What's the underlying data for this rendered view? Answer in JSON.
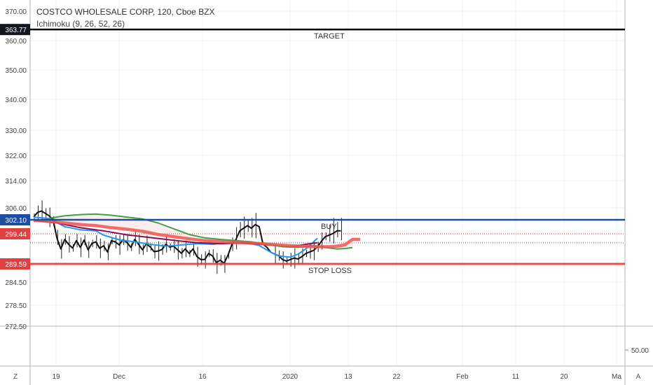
{
  "header": {
    "symbol_line": "COSTCO WHOLESALE CORP, 120, Cboe BZX",
    "indicator_line": "Ichimoku (9, 26, 52, 26)"
  },
  "footer": {
    "left_btn": "Z",
    "right_btn": "A"
  },
  "chart_data": {
    "type": "line",
    "price_axis": {
      "ticks": [
        {
          "label": "370.00",
          "v": 370
        },
        {
          "label": "360.00",
          "v": 360
        },
        {
          "label": "350.00",
          "v": 350
        },
        {
          "label": "340.00",
          "v": 340
        },
        {
          "label": "330.00",
          "v": 330
        },
        {
          "label": "322.00",
          "v": 322
        },
        {
          "label": "314.00",
          "v": 314
        },
        {
          "label": "306.00",
          "v": 306
        },
        {
          "label": "284.50",
          "v": 284.5
        },
        {
          "label": "278.50",
          "v": 278.5
        },
        {
          "label": "272.50",
          "v": 272.5
        }
      ],
      "price_tags": [
        {
          "label": "363.77",
          "v": 363.77,
          "bg": "#131722",
          "fg": "#ffffff"
        },
        {
          "label": "302.10",
          "v": 302.1,
          "bg": "#1e4da1",
          "fg": "#ffffff"
        },
        {
          "label": "299.44",
          "v": 299.44,
          "bg": "#e04040",
          "fg": "#ffffff"
        },
        {
          "label": "289.59",
          "v": 289.59,
          "bg": "#e04040",
          "fg": "#ffffff"
        }
      ]
    },
    "time_axis": [
      "19",
      "Dec",
      "16",
      "2020",
      "13",
      "22",
      "Feb",
      "11",
      "20",
      "Ma"
    ],
    "levels": [
      {
        "name": "TARGET",
        "v": 363.77,
        "color": "#000000",
        "label": "TARGET"
      },
      {
        "name": "BUY",
        "v": 302.1,
        "color": "#1e4da1",
        "label": "BUY"
      },
      {
        "name": "STOP LOSS",
        "v": 289.59,
        "color": "#e53935",
        "label": "STOP LOSS"
      }
    ],
    "dotted_levels": [
      {
        "v": 299.44,
        "color": "#c0392b"
      },
      {
        "v": 296.5,
        "color": "#555555"
      }
    ],
    "indicator_pane": {
      "tick": "50.00"
    },
    "series": [
      {
        "key": "price",
        "color": "#111111",
        "x": [
          0,
          1,
          2,
          3,
          4,
          5,
          6,
          7,
          8,
          9,
          10,
          11,
          12,
          13,
          14,
          15,
          16,
          17,
          18,
          19,
          20,
          21,
          22,
          23,
          24,
          25,
          26,
          27,
          28,
          29,
          30,
          31,
          32,
          33,
          34,
          35,
          36,
          37,
          38,
          39,
          40,
          41,
          42,
          43,
          44,
          45,
          46,
          47,
          48,
          49,
          50,
          51,
          52,
          53,
          54,
          55,
          56,
          57,
          58,
          59,
          60,
          61,
          62,
          63,
          64,
          65,
          66,
          67,
          68,
          69,
          70,
          71,
          72,
          73,
          74,
          75,
          76,
          77,
          78,
          79
        ],
        "y": [
          303,
          304.5,
          305,
          304.2,
          303.4,
          302.1,
          298,
          294.5,
          297.6,
          296,
          294.8,
          297.2,
          295,
          297.4,
          294.2,
          296.3,
          296.8,
          294.7,
          295.5,
          293.5,
          297.2,
          296.8,
          295.8,
          297.5,
          296.6,
          295,
          297.6,
          296,
          294.2,
          296.2,
          295.1,
          293.6,
          293.8,
          294.3,
          296,
          295.1,
          295.4,
          294.2,
          293.1,
          294.5,
          293,
          294.5,
          292,
          291,
          291,
          293,
          292.2,
          290,
          290.8,
          289.8,
          292.5,
          296,
          297.5,
          300,
          300.5,
          301,
          300.5,
          301.2,
          300.8,
          296,
          295,
          293.4,
          292.8,
          292.3,
          291,
          290.5,
          291,
          291.5,
          291.2,
          292,
          293,
          293.5,
          294,
          295.2,
          297,
          298.5,
          299,
          299.5,
          300,
          300
        ]
      },
      {
        "key": "tenkan",
        "color": "#2196f3",
        "x": [
          0,
          4,
          8,
          12,
          16,
          18,
          22,
          26,
          30,
          34,
          38,
          42,
          46,
          50,
          54,
          58,
          61,
          63,
          66,
          68,
          70,
          73
        ],
        "y": [
          303,
          302.5,
          300.8,
          300.2,
          300,
          299,
          297.5,
          296.8,
          296,
          295.4,
          295.8,
          296.2,
          296,
          296.5,
          296.8,
          295.6,
          293.4,
          292.2,
          291.8,
          292.8,
          294.5,
          298
        ]
      },
      {
        "key": "kijun",
        "color": "#880e4f",
        "x": [
          0,
          6,
          12,
          18,
          24,
          30,
          36,
          42,
          48,
          54,
          60,
          66,
          70,
          73
        ],
        "y": [
          302,
          301.5,
          300.6,
          300,
          299.1,
          298.2,
          297.3,
          296.5,
          296.2,
          296.4,
          295.8,
          295.2,
          296,
          296.5
        ]
      },
      {
        "key": "senkou_a",
        "color": "#43a047",
        "x": [
          4,
          8,
          12,
          16,
          20,
          24,
          28,
          32,
          36,
          40,
          44,
          48,
          52,
          56,
          60,
          64,
          68,
          72,
          76,
          78,
          80,
          82
        ],
        "y": [
          302.6,
          303.4,
          303.8,
          304,
          303.6,
          303,
          302.4,
          301.5,
          300.4,
          299.2,
          298.1,
          297.6,
          297.2,
          296.8,
          296,
          295.2,
          295,
          295.6,
          294.8,
          294.5,
          294.6,
          294.9
        ]
      },
      {
        "key": "senkou_b",
        "color": "#ef5350",
        "x": [
          0,
          4,
          8,
          12,
          16,
          20,
          24,
          28,
          32,
          36,
          40,
          44,
          48,
          52,
          56,
          60,
          64,
          68,
          72,
          76,
          78,
          80,
          82,
          84
        ],
        "y": [
          302,
          301.8,
          301.5,
          301.2,
          301,
          300.6,
          300.3,
          299.9,
          299.2,
          298.5,
          297.8,
          297.2,
          296.9,
          296.6,
          296.4,
          296.1,
          295.7,
          295.4,
          295.2,
          295.2,
          295.4,
          295.8,
          297.6,
          297.6
        ]
      }
    ],
    "candles_note": "small OHLC bars drawn along the price path"
  }
}
